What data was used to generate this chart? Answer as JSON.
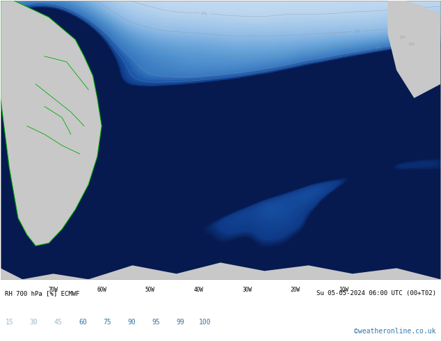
{
  "title_left": "RH 700 hPa [%] ECMWF",
  "title_right": "Su 05-05-2024 06:00 UTC (00+T02)",
  "colorbar_values": [
    15,
    30,
    45,
    60,
    75,
    90,
    95,
    99,
    100
  ],
  "lon_labels": [
    "70W",
    "60W",
    "50W",
    "40W",
    "30W",
    "20W",
    "10W"
  ],
  "lat_labels": [],
  "credit": "©weatheronline.co.uk",
  "background_color": "#ffffff",
  "ocean_color": "#ffffff",
  "land_color": "#c8c8c8",
  "border_color": "#00aa00",
  "contour_color": "#808080",
  "label_color": "#4488bb",
  "text_color": "#000000",
  "fig_width": 6.34,
  "fig_height": 4.9,
  "dpi": 100,
  "rh_colors": [
    "#ffffff",
    "#e8f0f8",
    "#d0e4f4",
    "#b8d4ee",
    "#90bce6",
    "#5a9ad4",
    "#3878c0",
    "#1a55a8",
    "#0e3a88",
    "#061a50"
  ],
  "rh_levels": [
    0,
    15,
    30,
    45,
    60,
    75,
    90,
    95,
    99,
    100
  ]
}
